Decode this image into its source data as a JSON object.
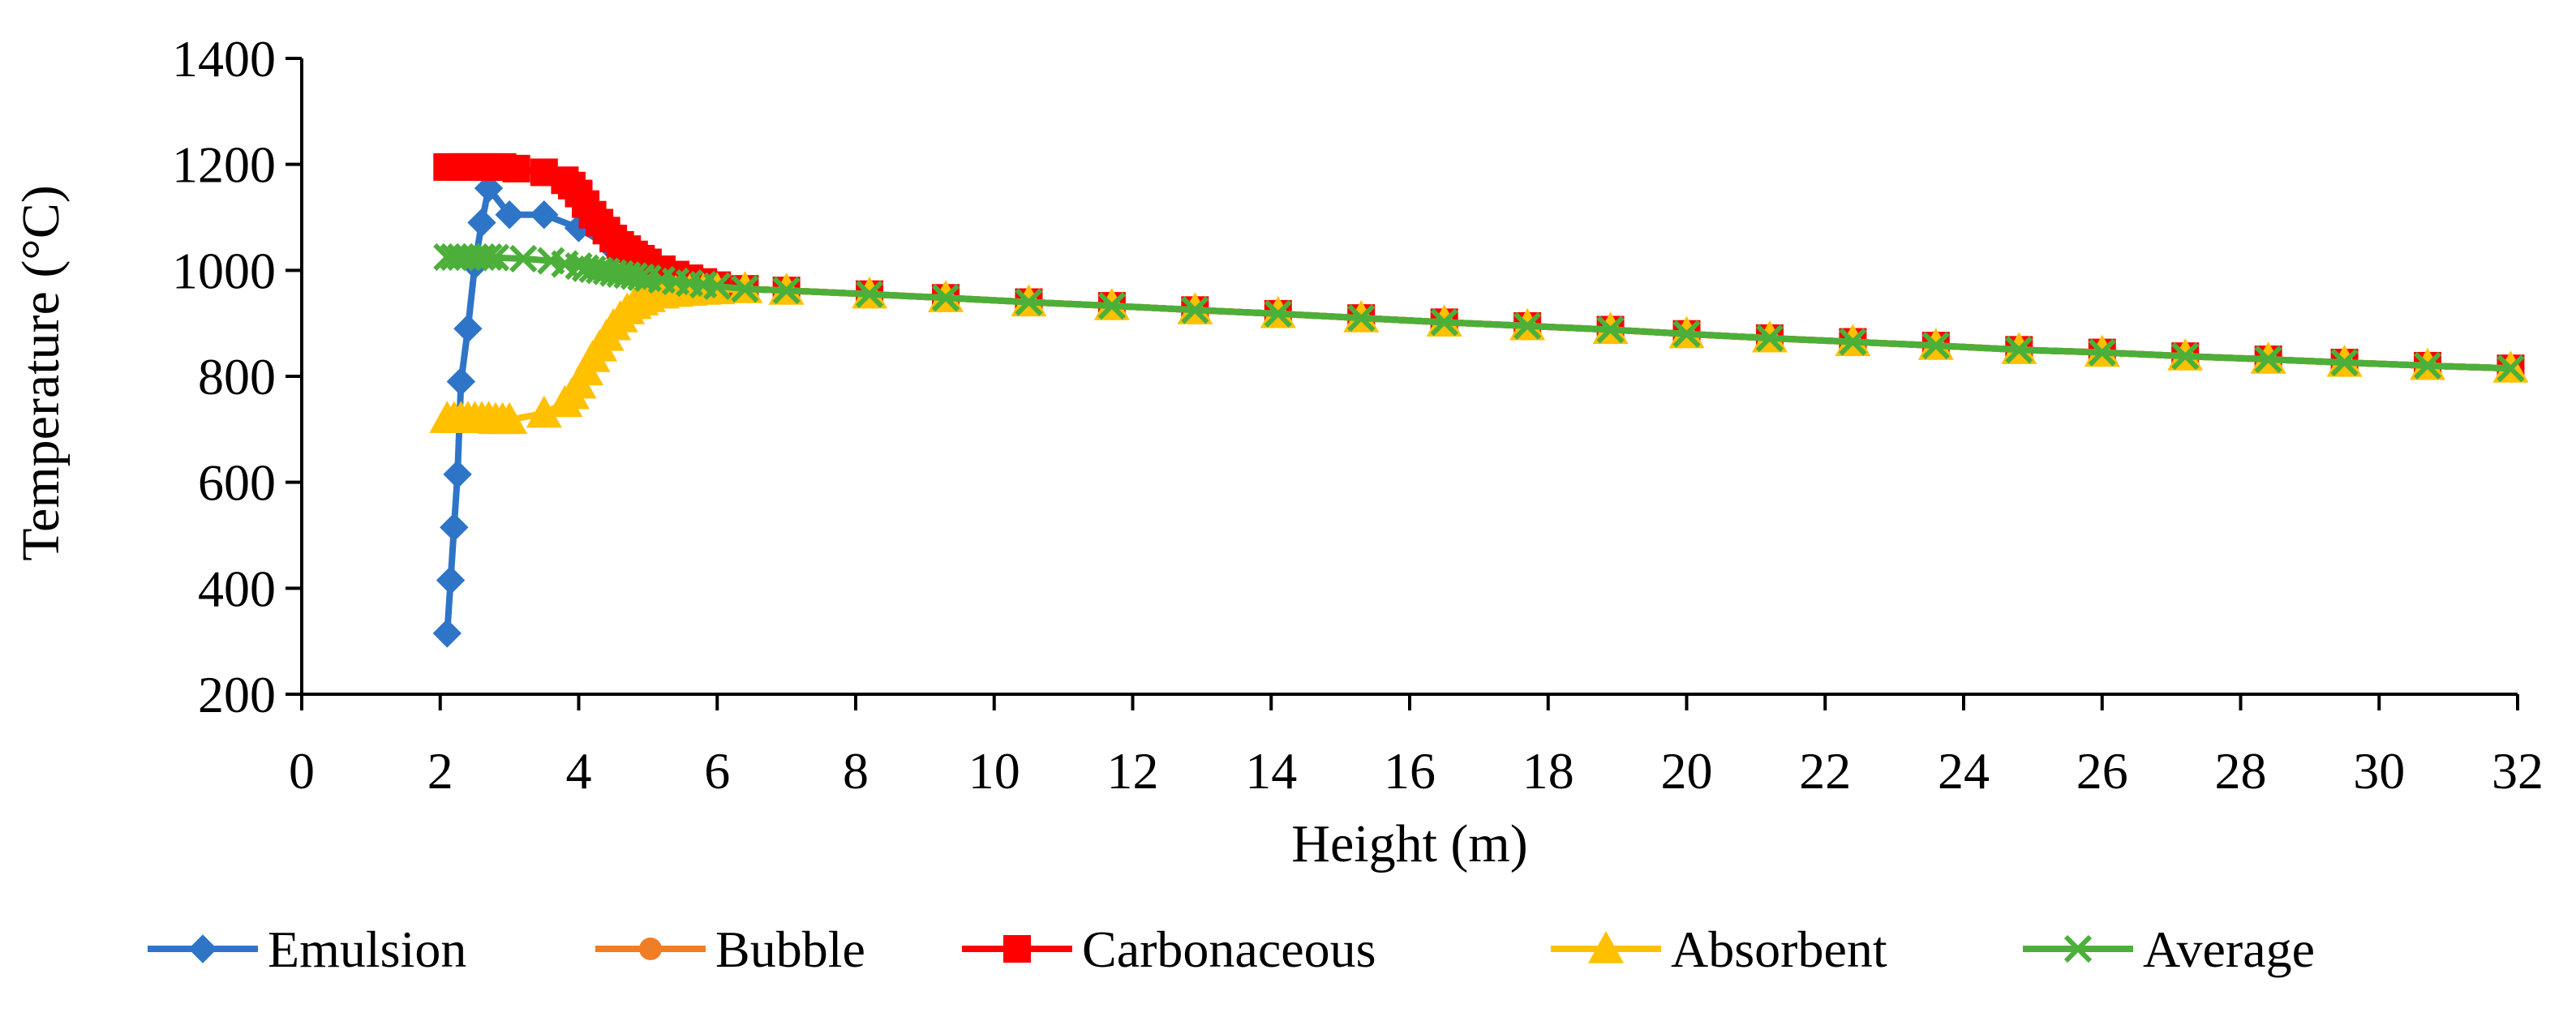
{
  "chart_data": {
    "type": "line",
    "title": "",
    "xlabel": "Height (m)",
    "ylabel": "Temperature (°C)",
    "xlim": [
      0,
      32
    ],
    "ylim": [
      200,
      1400
    ],
    "xticks": [
      0,
      2,
      4,
      6,
      8,
      10,
      12,
      14,
      16,
      18,
      20,
      22,
      24,
      26,
      28,
      30,
      32
    ],
    "yticks": [
      200,
      400,
      600,
      800,
      1000,
      1200,
      1400
    ],
    "grid": false,
    "legend_position": "bottom",
    "series": [
      {
        "name": "Emulsion",
        "color": "#2E75C8",
        "marker": "diamond",
        "x": [
          2.1,
          2.15,
          2.2,
          2.25,
          2.3,
          2.4,
          2.5,
          2.6,
          2.7,
          3.0,
          3.5,
          4.0,
          4.5,
          5.0,
          5.5,
          6.0,
          6.4,
          7.0,
          8.2,
          9.3,
          10.5,
          11.7,
          12.9,
          14.1,
          15.3,
          16.5,
          17.7,
          18.9,
          20.0,
          21.2,
          22.4,
          23.6,
          24.8,
          26.0,
          27.2,
          28.4,
          29.5,
          30.7,
          31.9
        ],
        "y": [
          315,
          415,
          515,
          615,
          790,
          890,
          1010,
          1090,
          1155,
          1105,
          1105,
          1080,
          1040,
          1010,
          985,
          972,
          965,
          962,
          955,
          948,
          940,
          933,
          925,
          918,
          910,
          902,
          895,
          888,
          880,
          872,
          865,
          858,
          850,
          845,
          838,
          832,
          826,
          820,
          815
        ]
      },
      {
        "name": "Bubble",
        "color": "#F07E26",
        "marker": "circle",
        "x": [
          6.4,
          7.0,
          8.2,
          9.3,
          10.5,
          11.7,
          12.9,
          14.1,
          15.3,
          16.5,
          17.7,
          18.9,
          20.0,
          21.2,
          22.4,
          23.6,
          24.8,
          26.0,
          27.2,
          28.4,
          29.5,
          30.7,
          31.9
        ],
        "y": [
          965,
          962,
          955,
          948,
          940,
          933,
          925,
          918,
          910,
          902,
          895,
          888,
          880,
          872,
          865,
          858,
          850,
          845,
          838,
          832,
          826,
          820,
          815
        ]
      },
      {
        "name": "Carbonaceous",
        "color": "#FF0000",
        "marker": "square",
        "x": [
          2.1,
          2.2,
          2.3,
          2.4,
          2.5,
          2.6,
          2.7,
          2.8,
          2.9,
          3.1,
          3.5,
          3.8,
          3.9,
          4.0,
          4.1,
          4.2,
          4.3,
          4.4,
          4.5,
          4.6,
          4.7,
          4.8,
          4.9,
          5.0,
          5.2,
          5.4,
          5.6,
          5.8,
          6.0,
          6.4,
          7.0,
          8.2,
          9.3,
          10.5,
          11.7,
          12.9,
          14.1,
          15.3,
          16.5,
          17.7,
          18.9,
          20.0,
          21.2,
          22.4,
          23.6,
          24.8,
          26.0,
          27.2,
          28.4,
          29.5,
          30.7,
          31.9
        ],
        "y": [
          1195,
          1195,
          1195,
          1195,
          1195,
          1195,
          1195,
          1195,
          1195,
          1192,
          1185,
          1170,
          1160,
          1145,
          1125,
          1105,
          1090,
          1075,
          1060,
          1048,
          1040,
          1030,
          1022,
          1015,
          1002,
          992,
          985,
          978,
          972,
          965,
          962,
          955,
          948,
          940,
          933,
          925,
          918,
          910,
          902,
          895,
          888,
          880,
          872,
          865,
          858,
          850,
          845,
          838,
          832,
          826,
          820,
          815
        ]
      },
      {
        "name": "Absorbent",
        "color": "#FFC000",
        "marker": "triangle",
        "x": [
          2.1,
          2.2,
          2.3,
          2.4,
          2.5,
          2.6,
          2.7,
          2.8,
          2.9,
          3.0,
          3.5,
          3.8,
          3.9,
          4.0,
          4.1,
          4.2,
          4.3,
          4.4,
          4.5,
          4.6,
          4.7,
          4.8,
          4.9,
          5.0,
          5.2,
          5.4,
          5.6,
          5.8,
          6.0,
          6.4,
          7.0,
          8.2,
          9.3,
          10.5,
          11.7,
          12.9,
          14.1,
          15.3,
          16.5,
          17.7,
          18.9,
          20.0,
          21.2,
          22.4,
          23.6,
          24.8,
          26.0,
          27.2,
          28.4,
          29.5,
          30.7,
          31.9
        ],
        "y": [
          720,
          720,
          720,
          720,
          720,
          720,
          720,
          718,
          718,
          718,
          730,
          750,
          765,
          785,
          810,
          835,
          855,
          875,
          895,
          910,
          925,
          935,
          942,
          948,
          955,
          958,
          960,
          962,
          963,
          965,
          962,
          955,
          948,
          940,
          933,
          925,
          918,
          910,
          902,
          895,
          888,
          880,
          872,
          865,
          858,
          850,
          845,
          838,
          832,
          826,
          820,
          815
        ]
      },
      {
        "name": "Average",
        "color": "#4CAF3A",
        "marker": "x",
        "x": [
          2.1,
          2.2,
          2.3,
          2.4,
          2.5,
          2.6,
          2.7,
          2.8,
          3.2,
          3.6,
          3.8,
          4.0,
          4.1,
          4.2,
          4.3,
          4.4,
          4.5,
          4.6,
          4.7,
          4.8,
          4.9,
          5.0,
          5.2,
          5.4,
          5.6,
          5.8,
          6.0,
          6.4,
          7.0,
          8.2,
          9.3,
          10.5,
          11.7,
          12.9,
          14.1,
          15.3,
          16.5,
          17.7,
          18.9,
          20.0,
          21.2,
          22.4,
          23.6,
          24.8,
          26.0,
          27.2,
          28.4,
          29.5,
          30.7,
          31.9
        ],
        "y": [
          1025,
          1025,
          1025,
          1025,
          1025,
          1025,
          1025,
          1024,
          1022,
          1018,
          1012,
          1008,
          1004,
          1002,
          1000,
          998,
          995,
          993,
          991,
          989,
          987,
          985,
          982,
          979,
          976,
          973,
          970,
          965,
          962,
          955,
          948,
          940,
          933,
          925,
          918,
          910,
          902,
          895,
          888,
          880,
          872,
          865,
          858,
          850,
          845,
          838,
          832,
          826,
          820,
          815
        ]
      }
    ]
  }
}
